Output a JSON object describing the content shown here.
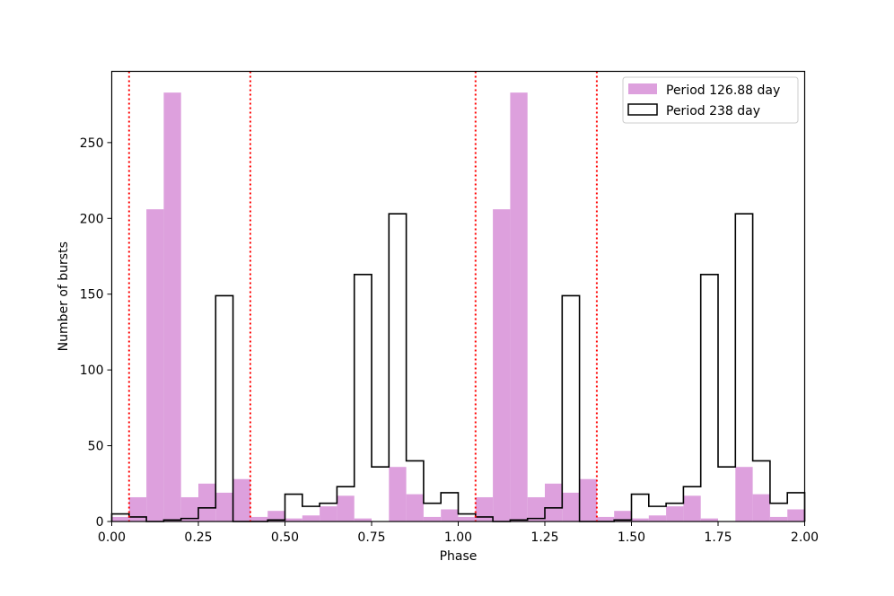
{
  "chart_data": {
    "type": "bar",
    "title": "",
    "xlabel": "Phase",
    "ylabel": "Number of bursts",
    "xlim": [
      0,
      2
    ],
    "ylim": [
      0,
      297
    ],
    "xticks": [
      0.0,
      0.25,
      0.5,
      0.75,
      1.0,
      1.25,
      1.5,
      1.75,
      2.0
    ],
    "xtick_labels": [
      "0.00",
      "0.25",
      "0.50",
      "0.75",
      "1.00",
      "1.25",
      "1.50",
      "1.75",
      "2.00"
    ],
    "yticks": [
      0,
      50,
      100,
      150,
      200,
      250
    ],
    "ytick_labels": [
      "0",
      "50",
      "100",
      "150",
      "200",
      "250"
    ],
    "bin_width": 0.05,
    "x": [
      0.0,
      0.05,
      0.1,
      0.15,
      0.2,
      0.25,
      0.3,
      0.35,
      0.4,
      0.45,
      0.5,
      0.55,
      0.6,
      0.65,
      0.7,
      0.75,
      0.8,
      0.85,
      0.9,
      0.95,
      1.0,
      1.05,
      1.1,
      1.15,
      1.2,
      1.25,
      1.3,
      1.35,
      1.4,
      1.45,
      1.5,
      1.55,
      1.6,
      1.65,
      1.7,
      1.75,
      1.8,
      1.85,
      1.9,
      1.95
    ],
    "series": [
      {
        "name": "Period 126.88 day",
        "style": "filled",
        "color": "#dda0dd",
        "values": [
          3,
          16,
          206,
          283,
          16,
          25,
          19,
          28,
          3,
          7,
          2,
          4,
          10,
          17,
          2,
          0,
          36,
          18,
          3,
          8,
          3,
          16,
          206,
          283,
          16,
          25,
          19,
          28,
          3,
          7,
          2,
          4,
          10,
          17,
          2,
          0,
          36,
          18,
          3,
          8
        ]
      },
      {
        "name": "Period 238 day",
        "style": "step",
        "color": "#000000",
        "values": [
          5,
          3,
          0,
          1,
          2,
          9,
          149,
          0,
          0,
          1,
          18,
          10,
          12,
          23,
          163,
          36,
          203,
          40,
          12,
          19,
          5,
          3,
          0,
          1,
          2,
          9,
          149,
          0,
          0,
          1,
          18,
          10,
          12,
          23,
          163,
          36,
          203,
          40,
          12,
          19
        ]
      }
    ],
    "vlines": {
      "color": "#ff0000",
      "style": "dotted",
      "x": [
        0.05,
        0.4,
        1.05,
        1.4
      ]
    },
    "legend_position": "top-right"
  }
}
